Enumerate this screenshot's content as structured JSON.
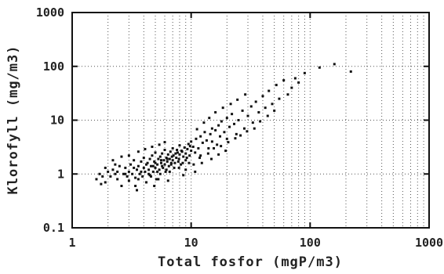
{
  "chart_data": {
    "type": "scatter",
    "xlabel": "Total fosfor (mgP/m3)",
    "ylabel": "Klorofyll (mg/m3)",
    "xscale": "log",
    "yscale": "log",
    "xlim": [
      1,
      1000
    ],
    "ylim": [
      0.1,
      1000
    ],
    "grid": true,
    "x_ticks": [
      {
        "value": 1,
        "label": "1"
      },
      {
        "value": 10,
        "label": "10"
      },
      {
        "value": 100,
        "label": "100"
      },
      {
        "value": 1000,
        "label": "1000"
      }
    ],
    "y_ticks": [
      {
        "value": 0.1,
        "label": "0.1"
      },
      {
        "value": 1,
        "label": "1"
      },
      {
        "value": 10,
        "label": "10"
      },
      {
        "value": 100,
        "label": "100"
      },
      {
        "value": 1000,
        "label": "1000"
      }
    ],
    "points": [
      [
        1.6,
        0.8
      ],
      [
        1.7,
        1.0
      ],
      [
        1.8,
        0.9
      ],
      [
        1.9,
        0.7
      ],
      [
        2.0,
        1.1
      ],
      [
        2.1,
        0.9
      ],
      [
        2.2,
        1.2
      ],
      [
        2.3,
        1.0
      ],
      [
        2.4,
        0.8
      ],
      [
        2.5,
        1.4
      ],
      [
        2.6,
        0.6
      ],
      [
        2.7,
        1.0
      ],
      [
        2.8,
        1.3
      ],
      [
        2.9,
        0.9
      ],
      [
        3.0,
        1.1
      ],
      [
        3.0,
        0.75
      ],
      [
        3.1,
        1.5
      ],
      [
        3.2,
        1.0
      ],
      [
        3.3,
        1.8
      ],
      [
        3.4,
        0.85
      ],
      [
        3.5,
        1.2
      ],
      [
        3.5,
        0.5
      ],
      [
        3.6,
        1.4
      ],
      [
        3.7,
        1.0
      ],
      [
        3.8,
        1.7
      ],
      [
        3.9,
        0.9
      ],
      [
        4.0,
        1.3
      ],
      [
        4.0,
        2.0
      ],
      [
        4.1,
        1.1
      ],
      [
        4.2,
        0.7
      ],
      [
        4.3,
        1.6
      ],
      [
        4.4,
        1.2
      ],
      [
        4.5,
        1.9
      ],
      [
        4.5,
        0.95
      ],
      [
        4.6,
        1.4
      ],
      [
        4.7,
        2.2
      ],
      [
        4.8,
        1.1
      ],
      [
        4.9,
        1.7
      ],
      [
        5.0,
        1.3
      ],
      [
        5.0,
        2.5
      ],
      [
        5.1,
        0.8
      ],
      [
        5.2,
        1.5
      ],
      [
        5.3,
        1.9
      ],
      [
        5.4,
        1.2
      ],
      [
        5.5,
        2.1
      ],
      [
        5.5,
        1.0
      ],
      [
        5.6,
        1.6
      ],
      [
        5.7,
        2.4
      ],
      [
        5.8,
        1.3
      ],
      [
        5.9,
        1.8
      ],
      [
        6.0,
        1.5
      ],
      [
        6.0,
        2.8
      ],
      [
        6.1,
        1.1
      ],
      [
        6.2,
        2.0
      ],
      [
        6.3,
        1.7
      ],
      [
        6.4,
        2.3
      ],
      [
        6.5,
        1.4
      ],
      [
        6.6,
        1.9
      ],
      [
        6.7,
        2.6
      ],
      [
        6.8,
        1.6
      ],
      [
        6.9,
        2.1
      ],
      [
        7.0,
        1.8
      ],
      [
        7.0,
        3.0
      ],
      [
        7.2,
        1.3
      ],
      [
        7.4,
        2.4
      ],
      [
        7.5,
        2.0
      ],
      [
        7.6,
        2.8
      ],
      [
        7.8,
        1.7
      ],
      [
        8.0,
        2.3
      ],
      [
        8.0,
        3.4
      ],
      [
        8.2,
        1.5
      ],
      [
        8.4,
        2.6
      ],
      [
        8.6,
        2.1
      ],
      [
        8.8,
        3.1
      ],
      [
        9.0,
        2.4
      ],
      [
        9.0,
        1.8
      ],
      [
        9.3,
        2.9
      ],
      [
        9.5,
        3.6
      ],
      [
        9.7,
        2.2
      ],
      [
        10.0,
        2.7
      ],
      [
        10.0,
        4.0
      ],
      [
        10.4,
        3.2
      ],
      [
        10.8,
        2.5
      ],
      [
        11.0,
        4.5
      ],
      [
        11.5,
        3.0
      ],
      [
        12.0,
        5.0
      ],
      [
        12.0,
        2.2
      ],
      [
        12.5,
        3.8
      ],
      [
        13.0,
        6.0
      ],
      [
        13.5,
        4.2
      ],
      [
        14.0,
        3.0
      ],
      [
        14.5,
        5.5
      ],
      [
        15.0,
        7.0
      ],
      [
        15.0,
        4.0
      ],
      [
        16.0,
        6.5
      ],
      [
        16.5,
        3.5
      ],
      [
        17.0,
        8.0
      ],
      [
        17.5,
        5.0
      ],
      [
        18.0,
        9.5
      ],
      [
        19.0,
        6.0
      ],
      [
        20.0,
        11.0
      ],
      [
        20.0,
        4.5
      ],
      [
        21.0,
        7.5
      ],
      [
        22.0,
        13.0
      ],
      [
        23.0,
        8.5
      ],
      [
        24.0,
        5.5
      ],
      [
        25.0,
        10.0
      ],
      [
        27.0,
        15.0
      ],
      [
        28.0,
        7.0
      ],
      [
        30.0,
        12.0
      ],
      [
        32.0,
        18.0
      ],
      [
        33.0,
        9.0
      ],
      [
        35.0,
        22.0
      ],
      [
        37.0,
        14.0
      ],
      [
        40.0,
        28.0
      ],
      [
        42.0,
        17.0
      ],
      [
        45.0,
        35.0
      ],
      [
        48.0,
        20.0
      ],
      [
        52.0,
        45.0
      ],
      [
        55.0,
        25.0
      ],
      [
        60.0,
        55.0
      ],
      [
        65.0,
        30.0
      ],
      [
        70.0,
        40.0
      ],
      [
        75.0,
        60.0
      ],
      [
        80.0,
        50.0
      ],
      [
        90.0,
        75.0
      ],
      [
        120.0,
        95.0
      ],
      [
        160.0,
        110.0
      ],
      [
        220.0,
        80.0
      ],
      [
        3.3,
        1.3
      ],
      [
        3.8,
        1.1
      ],
      [
        4.2,
        1.5
      ],
      [
        4.8,
        1.4
      ],
      [
        5.2,
        1.1
      ],
      [
        5.7,
        1.4
      ],
      [
        6.2,
        1.2
      ],
      [
        6.8,
        1.5
      ],
      [
        7.3,
        1.6
      ],
      [
        7.9,
        1.9
      ],
      [
        8.5,
        1.6
      ],
      [
        9.2,
        2.0
      ],
      [
        4.4,
        1.0
      ],
      [
        5.0,
        1.6
      ],
      [
        5.6,
        1.8
      ],
      [
        6.3,
        1.9
      ],
      [
        7.1,
        2.2
      ],
      [
        7.7,
        2.5
      ],
      [
        8.3,
        2.7
      ],
      [
        9.8,
        3.3
      ],
      [
        2.4,
        1.1
      ],
      [
        2.8,
        1.0
      ],
      [
        3.6,
        0.8
      ],
      [
        4.6,
        0.9
      ],
      [
        5.3,
        0.8
      ],
      [
        6.6,
        1.1
      ],
      [
        7.9,
        1.3
      ],
      [
        9.6,
        1.6
      ],
      [
        11.8,
        2.0
      ],
      [
        13.9,
        2.4
      ],
      [
        15.5,
        3.0
      ],
      [
        17.8,
        3.3
      ],
      [
        20.5,
        3.9
      ],
      [
        23.5,
        4.6
      ],
      [
        26.0,
        5.2
      ],
      [
        29.5,
        6.2
      ],
      [
        34.0,
        7.0
      ],
      [
        38.0,
        9.5
      ],
      [
        44.0,
        12.0
      ],
      [
        50.0,
        15.0
      ],
      [
        11.2,
        6.8
      ],
      [
        12.8,
        9.0
      ],
      [
        14.2,
        11.0
      ],
      [
        16.0,
        14.0
      ],
      [
        18.5,
        17.0
      ],
      [
        21.5,
        20.0
      ],
      [
        24.5,
        24.0
      ],
      [
        28.5,
        30.0
      ],
      [
        3.0,
        2.2
      ],
      [
        3.6,
        2.6
      ],
      [
        4.1,
        2.9
      ],
      [
        4.7,
        3.2
      ],
      [
        5.4,
        3.5
      ],
      [
        6.0,
        3.9
      ],
      [
        2.2,
        1.8
      ],
      [
        2.6,
        2.1
      ],
      [
        9.0,
        1.2
      ],
      [
        10.5,
        1.5
      ],
      [
        12.3,
        1.6
      ],
      [
        14.8,
        1.9
      ],
      [
        17.0,
        2.3
      ],
      [
        19.5,
        2.7
      ],
      [
        1.9,
        1.3
      ],
      [
        2.3,
        1.5
      ],
      [
        1.75,
        0.65
      ],
      [
        3.4,
        0.6
      ],
      [
        4.9,
        0.6
      ],
      [
        6.4,
        0.75
      ],
      [
        8.6,
        0.95
      ],
      [
        10.8,
        1.1
      ]
    ]
  }
}
